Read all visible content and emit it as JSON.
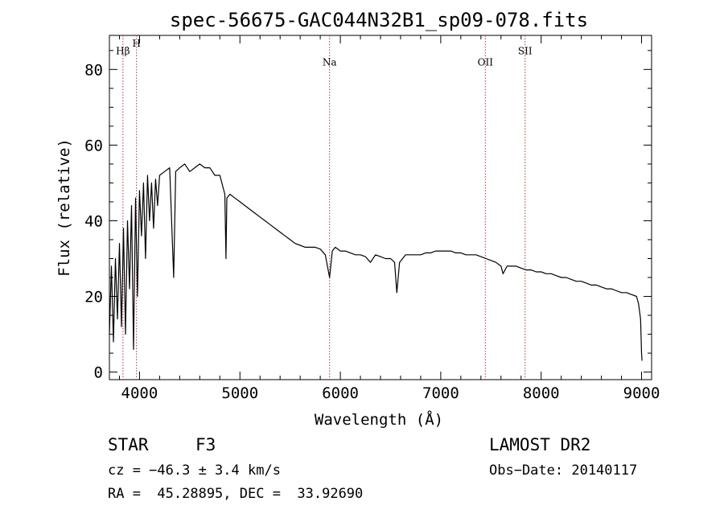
{
  "chart_data": {
    "type": "line",
    "title": "spec-56675-GAC044N32B1_sp09-078.fits",
    "xlabel": "Wavelength (Å)",
    "ylabel": "Flux (relative)",
    "xlim": [
      3700,
      9100
    ],
    "ylim": [
      -2,
      89
    ],
    "xticks": [
      4000,
      5000,
      6000,
      7000,
      8000,
      9000
    ],
    "yticks": [
      0,
      20,
      40,
      60,
      80
    ],
    "grid": false,
    "series": [
      {
        "x": [
          3700,
          3720,
          3740,
          3760,
          3780,
          3800,
          3820,
          3840,
          3860,
          3880,
          3900,
          3920,
          3940,
          3960,
          3980,
          4000,
          4020,
          4040,
          4060,
          4080,
          4100,
          4120,
          4140,
          4160,
          4180,
          4200,
          4250,
          4300,
          4340,
          4360,
          4400,
          4450,
          4500,
          4550,
          4600,
          4650,
          4700,
          4750,
          4800,
          4850,
          4861,
          4870,
          4900,
          4950,
          5000,
          5050,
          5100,
          5150,
          5200,
          5250,
          5300,
          5350,
          5400,
          5450,
          5500,
          5550,
          5600,
          5650,
          5700,
          5750,
          5800,
          5850,
          5893,
          5920,
          5950,
          6000,
          6050,
          6100,
          6150,
          6200,
          6250,
          6300,
          6350,
          6400,
          6450,
          6500,
          6540,
          6563,
          6590,
          6620,
          6650,
          6700,
          6750,
          6800,
          6850,
          6900,
          6950,
          7000,
          7050,
          7100,
          7150,
          7200,
          7250,
          7300,
          7350,
          7400,
          7450,
          7500,
          7550,
          7600,
          7620,
          7640,
          7660,
          7700,
          7750,
          7800,
          7850,
          7900,
          7950,
          8000,
          8050,
          8100,
          8150,
          8200,
          8250,
          8300,
          8350,
          8400,
          8450,
          8500,
          8550,
          8600,
          8650,
          8700,
          8750,
          8800,
          8850,
          8900,
          8950,
          8970,
          8990,
          9000,
          9005
        ],
        "y": [
          10,
          28,
          8,
          30,
          14,
          34,
          12,
          38,
          10,
          40,
          22,
          44,
          6,
          46,
          20,
          48,
          36,
          50,
          30,
          52,
          40,
          50,
          38,
          51,
          44,
          52,
          53,
          54,
          25,
          53,
          54,
          55,
          53,
          54,
          55,
          54,
          54,
          52,
          52,
          47,
          30,
          46,
          47,
          46,
          45,
          44,
          43,
          42,
          41,
          40,
          39,
          38,
          37,
          36,
          35,
          34,
          33.5,
          33,
          33,
          33,
          32.5,
          31,
          25,
          32,
          33,
          32,
          32,
          31.5,
          31,
          31,
          30.5,
          29,
          31,
          30.5,
          30,
          30,
          29,
          21,
          29,
          30,
          31,
          31,
          31,
          31,
          31.5,
          31.5,
          32,
          32,
          32,
          32,
          31.5,
          31.5,
          31,
          31,
          31,
          30.5,
          30,
          29.5,
          29,
          28,
          26,
          27,
          28,
          28,
          28,
          27.5,
          27,
          27,
          26.5,
          26.5,
          26,
          26,
          25.5,
          25,
          25,
          24.5,
          24,
          24,
          23.5,
          23,
          23,
          22.5,
          22,
          22,
          21.5,
          21,
          21,
          20.5,
          20,
          18,
          14,
          5,
          3
        ]
      }
    ],
    "annotations": [
      {
        "label": "Hβ",
        "x": 3835,
        "y": 84
      },
      {
        "label": "H",
        "x": 3970,
        "y": 86
      },
      {
        "label": "Na",
        "x": 5893,
        "y": 81
      },
      {
        "label": "OII",
        "x": 7444,
        "y": 81
      },
      {
        "label": "SII",
        "x": 7840,
        "y": 84
      }
    ],
    "marker_lines": [
      3835,
      3970,
      5893,
      7444,
      7840
    ]
  },
  "info": {
    "class": "STAR",
    "subclass": "F3",
    "survey": "LAMOST DR2",
    "cz": "cz = −46.3 ± 3.4 km/s",
    "obs_date": "Obs−Date: 20140117",
    "radec": "RA =  45.28895, DEC =  33.92690"
  },
  "colors": {
    "spectrum": "#000000",
    "marker_line": "#b03030",
    "axes": "#000000"
  }
}
